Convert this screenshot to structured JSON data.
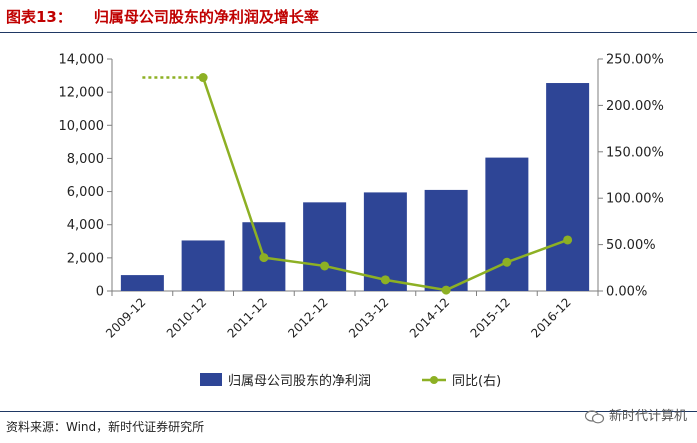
{
  "header": {
    "figure_label": "图表13：",
    "title": "归属母公司股东的净利润及增长率"
  },
  "chart_data": {
    "type": "bar",
    "categories": [
      "2009-12",
      "2010-12",
      "2011-12",
      "2012-12",
      "2013-12",
      "2014-12",
      "2015-12",
      "2016-12"
    ],
    "series": [
      {
        "name": "归属母公司股东的净利润",
        "kind": "bar",
        "axis": "left",
        "values": [
          960,
          3050,
          4150,
          5350,
          5950,
          6100,
          8050,
          12550
        ]
      },
      {
        "name": "同比(右)",
        "kind": "line",
        "axis": "right",
        "values": [
          230,
          230,
          36,
          27,
          12,
          1,
          31,
          55
        ]
      }
    ],
    "left_axis": {
      "min": 0,
      "max": 14000,
      "ticks": [
        0,
        2000,
        4000,
        6000,
        8000,
        10000,
        12000,
        14000
      ],
      "tick_labels": [
        "0",
        "2,000",
        "4,000",
        "6,000",
        "8,000",
        "10,000",
        "12,000",
        "14,000"
      ]
    },
    "right_axis": {
      "min": 0,
      "max": 250,
      "ticks": [
        0,
        50,
        100,
        150,
        200,
        250
      ],
      "tick_labels": [
        "0.00%",
        "50.00%",
        "100.00%",
        "150.00%",
        "200.00%",
        "250.00%"
      ]
    },
    "bar_color": "#2e4596",
    "line_color": "#8db024",
    "legend": {
      "placement": "bottom",
      "items": [
        "归属母公司股东的净利润",
        "同比(右)"
      ]
    }
  },
  "footer": {
    "source": "资料来源：Wind，新时代证券研究所",
    "watermark": "新时代计算机"
  }
}
